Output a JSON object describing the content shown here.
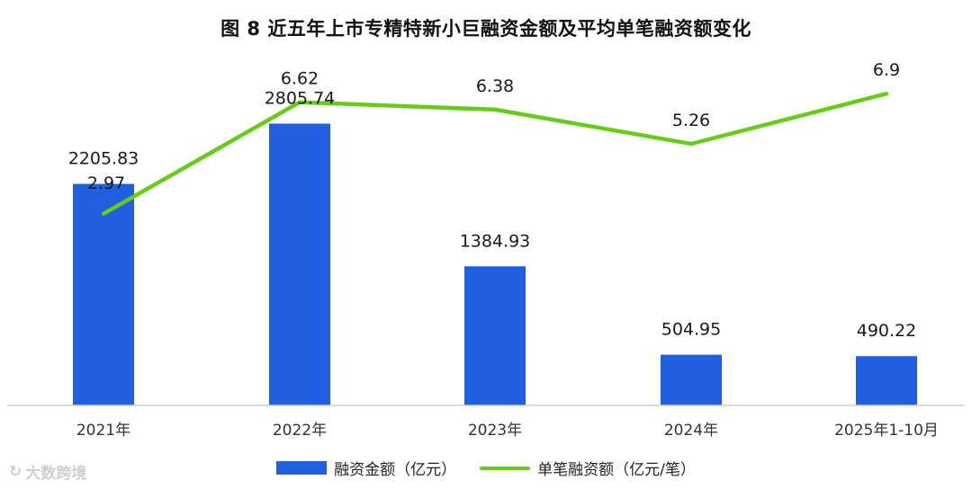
{
  "chart_data": {
    "type": "bar+line",
    "title": "图 8  近五年上市专精特新小巨融资金额及平均单笔融资额变化",
    "categories": [
      "2021年",
      "2022年",
      "2023年",
      "2024年",
      "2025年1-10月"
    ],
    "series": [
      {
        "name": "融资金额（亿元）",
        "type": "bar",
        "color": "#1f5fe0",
        "values": [
          2205.83,
          2805.74,
          1384.93,
          504.95,
          490.22
        ],
        "labels": [
          "2205.83",
          "2805.74",
          "1384.93",
          "504.95",
          "490.22"
        ]
      },
      {
        "name": "单笔融资额（亿元/笔）",
        "type": "line",
        "color": "#66cc1a",
        "values": [
          2.97,
          6.62,
          6.38,
          5.26,
          6.9
        ],
        "labels": [
          "2.97",
          "6.62",
          "6.38",
          "5.26",
          "6.9"
        ]
      }
    ],
    "ylim_bar": [
      0,
      3500
    ],
    "ylim_line": [
      -3.3,
      8.2
    ],
    "grid": false,
    "legend": "bottom"
  },
  "watermark": {
    "text": "大数跨境"
  }
}
